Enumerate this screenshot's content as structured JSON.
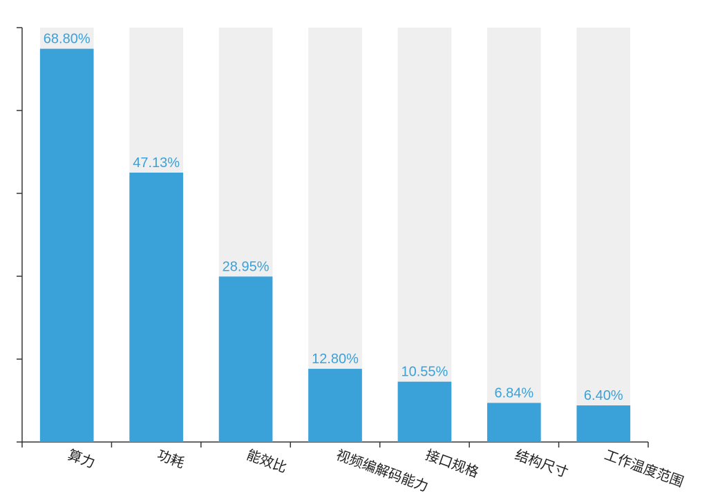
{
  "chart_data": {
    "type": "bar",
    "categories": [
      "算力",
      "功耗",
      "能效比",
      "视频编解码能力",
      "接口规格",
      "结构尺寸",
      "工作温度范围"
    ],
    "values": [
      68.8,
      47.13,
      28.95,
      12.8,
      10.55,
      6.84,
      6.4
    ],
    "value_labels": [
      "68.80%",
      "47.13%",
      "28.95%",
      "12.80%",
      "10.55%",
      "6.84%",
      "6.40%"
    ],
    "color": "#3aa1d9",
    "background_color": "#efefef",
    "ylim": [
      0,
      72.5
    ],
    "yticks": [
      0,
      14.5,
      29,
      43.5,
      58,
      72.5
    ]
  }
}
